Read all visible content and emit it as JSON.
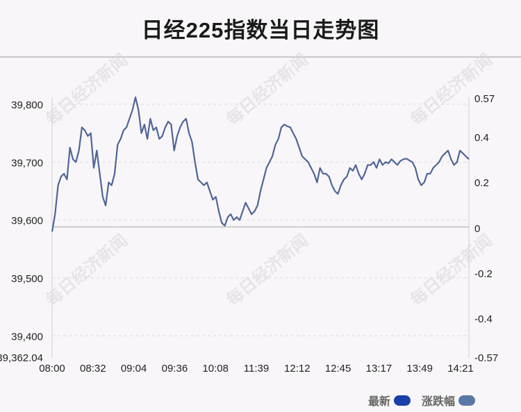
{
  "title": "日经225指数当日走势图",
  "watermark": "每日经济新闻",
  "legend": [
    {
      "label": "最新",
      "color": "#1a3fa8"
    },
    {
      "label": "涨跌幅",
      "color": "#5b77a8"
    }
  ],
  "colors": {
    "line": "#4f6596",
    "grid": "#dcdcdc",
    "baseline": "#c0c0c0"
  },
  "chart_data": {
    "type": "line",
    "x_ticks": [
      "08:00",
      "08:32",
      "09:04",
      "09:36",
      "10:08",
      "11:39",
      "12:12",
      "12:45",
      "13:17",
      "13:49",
      "14:21"
    ],
    "y_left_ticks": [
      "39,800",
      "39,700",
      "39,600",
      "39,500",
      "39,400",
      "39,362.04"
    ],
    "y_right_ticks": [
      "0.57",
      "0.4",
      "0.2",
      "0",
      "-0.2",
      "-0.4",
      "-0.57"
    ],
    "y_left_range": [
      39362.04,
      39812
    ],
    "baseline_value": 39588,
    "series": [
      {
        "values": [
          39580,
          39610,
          39660,
          39675,
          39680,
          39670,
          39725,
          39705,
          39700,
          39720,
          39760,
          39755,
          39745,
          39750,
          39690,
          39720,
          39680,
          39640,
          39625,
          39665,
          39660,
          39680,
          39730,
          39740,
          39755,
          39760,
          39775,
          39790,
          39812,
          39790,
          39750,
          39765,
          39740,
          39775,
          39755,
          39760,
          39740,
          39745,
          39760,
          39770,
          39765,
          39720,
          39745,
          39760,
          39770,
          39775,
          39750,
          39735,
          39700,
          39670,
          39665,
          39660,
          39665,
          39650,
          39635,
          39640,
          39615,
          39595,
          39590,
          39605,
          39610,
          39600,
          39605,
          39600,
          39615,
          39630,
          39620,
          39610,
          39615,
          39625,
          39650,
          39670,
          39690,
          39700,
          39710,
          39730,
          39740,
          39760,
          39765,
          39762,
          39760,
          39750,
          39740,
          39725,
          39710,
          39705,
          39700,
          39690,
          39680,
          39665,
          39690,
          39680,
          39680,
          39675,
          39660,
          39650,
          39645,
          39660,
          39670,
          39675,
          39690,
          39685,
          39695,
          39680,
          39670,
          39680,
          39695,
          39695,
          39700,
          39690,
          39705,
          39695,
          39700,
          39698,
          39705,
          39700,
          39695,
          39702,
          39705,
          39706,
          39703,
          39700,
          39690,
          39670,
          39660,
          39665,
          39680,
          39680,
          39690,
          39695,
          39700,
          39710,
          39715,
          39720,
          39705,
          39695,
          39700,
          39720,
          39715,
          39710,
          39705
        ]
      }
    ]
  }
}
